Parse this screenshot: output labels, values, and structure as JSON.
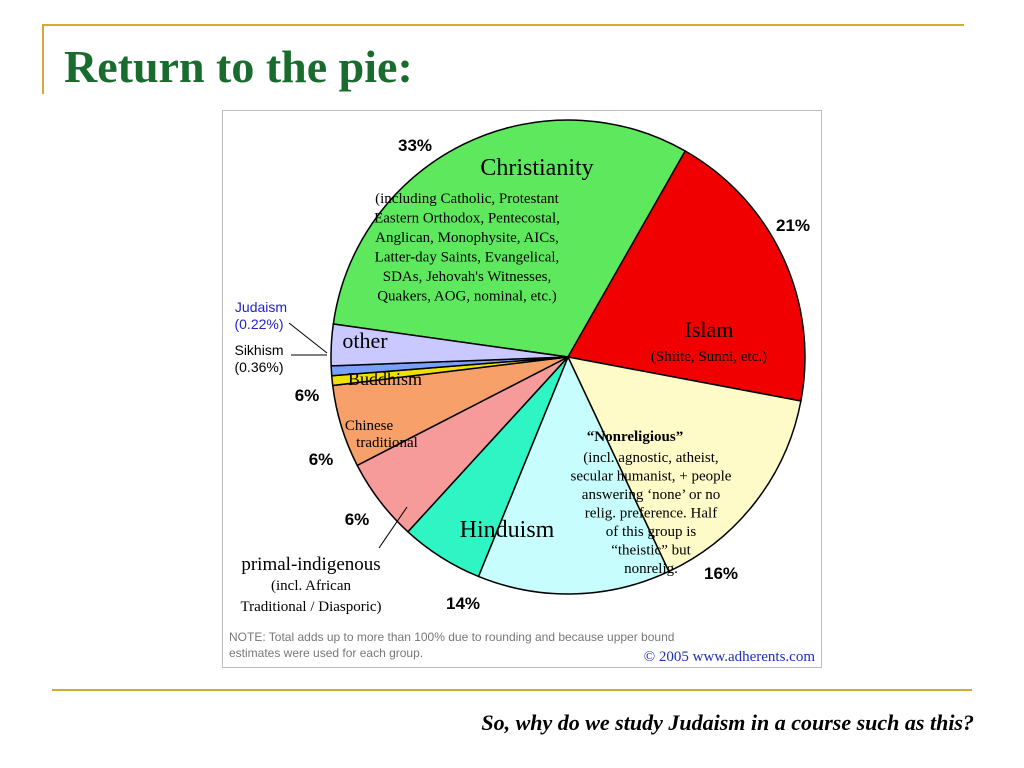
{
  "slide": {
    "title": "Return to the pie:",
    "caption": "So, why do we study Judaism in a course such as this?"
  },
  "colors": {
    "title": "#1a6b2e",
    "rule": "#d4a839",
    "christianity": "#5ee85e",
    "islam": "#f00000",
    "nonreligious": "#fffbc8",
    "hinduism": "#c8fdfd",
    "primal": "#2ff5c5",
    "chinese": "#f79a9a",
    "buddhism": "#f7a06a",
    "judaism": "#7aa0ff",
    "sikhism": "#f0e000",
    "other": "#c9c9ff",
    "blue_text": "#2222cc"
  },
  "chart_data": {
    "type": "pie",
    "slices": [
      {
        "name": "Christianity",
        "value": 33,
        "pct_label": "33%",
        "color": "#5ee85e"
      },
      {
        "name": "Islam",
        "value": 21,
        "pct_label": "21%",
        "color": "#f00000"
      },
      {
        "name": "Nonreligious",
        "value": 16,
        "pct_label": "16%",
        "color": "#fffbc8"
      },
      {
        "name": "Hinduism",
        "value": 14,
        "pct_label": "14%",
        "color": "#c8fdfd"
      },
      {
        "name": "primal-indigenous",
        "value": 6,
        "pct_label": "6%",
        "color": "#2ff5c5"
      },
      {
        "name": "Chinese traditional",
        "value": 6,
        "pct_label": "6%",
        "color": "#f79a9a"
      },
      {
        "name": "Buddhism",
        "value": 6,
        "pct_label": "6%",
        "color": "#f7a06a"
      },
      {
        "name": "Sikhism",
        "value": 0.36,
        "pct_label": "(0.36%)",
        "color": "#f0e000"
      },
      {
        "name": "Judaism",
        "value": 0.22,
        "pct_label": "(0.22%)",
        "color": "#7aa0ff"
      },
      {
        "name": "other",
        "value": 3,
        "pct_label": "",
        "color": "#c9c9ff"
      }
    ],
    "labels": {
      "christianity": "Christianity",
      "christianity_note": [
        "(including Catholic, Protestant",
        "Eastern Orthodox, Pentecostal,",
        "Anglican, Monophysite, AICs,",
        "Latter-day Saints, Evangelical,",
        "SDAs, Jehovah's Witnesses,",
        "Quakers, AOG, nominal, etc.)"
      ],
      "islam": "Islam",
      "islam_note": "(Shiite, Sunni, etc.)",
      "nonreligious": "“Nonreligious”",
      "nonreligious_note": [
        "(incl. agnostic, atheist,",
        "secular humanist, + people",
        "answering ‘none’ or no",
        "relig. preference. Half",
        "of this group is",
        "“theistic” but",
        "nonrelig."
      ],
      "hinduism": "Hinduism",
      "primal": "primal-indigenous",
      "primal_note": [
        "(incl. African",
        "Traditional / Diasporic)"
      ],
      "chinese": [
        "Chinese",
        "traditional"
      ],
      "buddhism": "Buddhism",
      "other": "other",
      "judaism": "Judaism",
      "judaism_pct": "(0.22%)",
      "sikhism": "Sikhism",
      "sikhism_pct": "(0.36%)"
    },
    "note": [
      "NOTE: Total adds up to more than 100% due to rounding and because upper bound",
      "estimates were used for each group."
    ],
    "credit": "© 2005  www.adherents.com"
  }
}
